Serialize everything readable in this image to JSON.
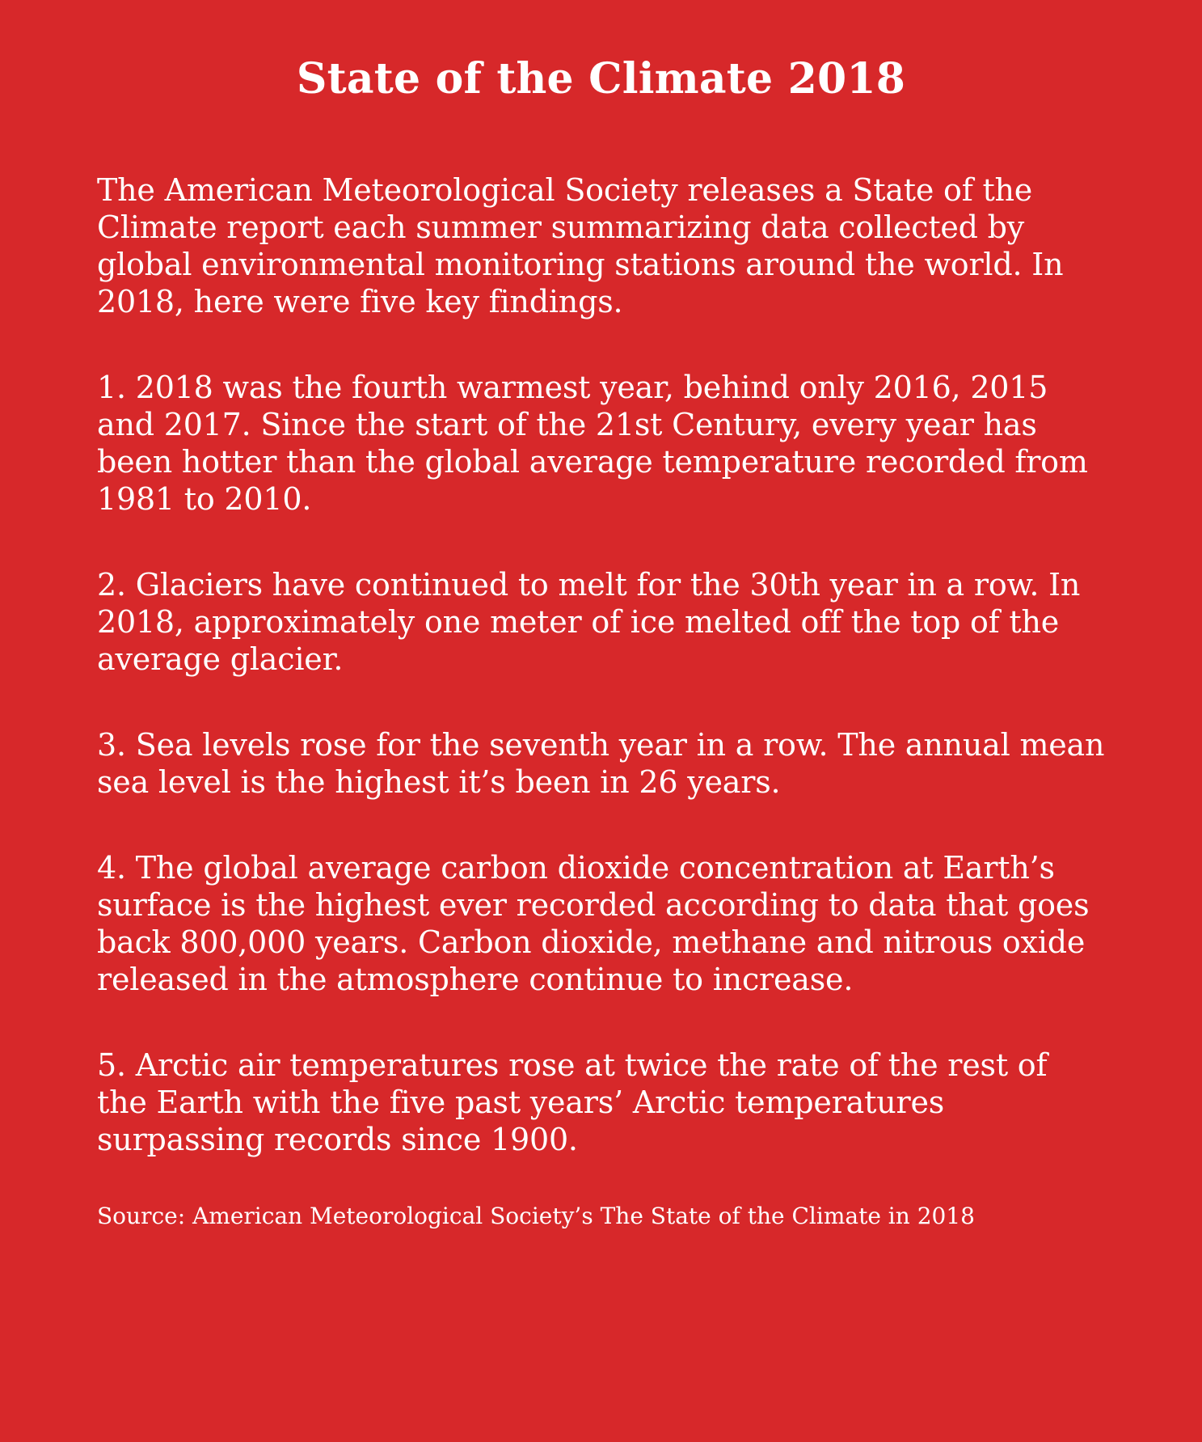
{
  "title": "State of the Climate 2018",
  "intro": "The American Meteorological Society releases a State of the Climate report each summer summarizing data collected by global environmental monitoring stations around the world. In 2018, here were five key findings.",
  "findings": [
    "1. 2018 was the fourth warmest year, behind only 2016, 2015 and 2017. Since the start of the 21st Century, every year has been hotter than the global average temperature recorded from 1981 to 2010.",
    "2. Glaciers have continued to melt for the 30th year in a row. In 2018, approximately one meter of ice melted off the top of the average glacier.",
    "3. Sea levels rose for the seventh year in a row. The annual mean sea level is the highest it’s been in 26 years.",
    "4. The global average carbon dioxide concentration at Earth’s surface is the highest ever recorded according to data that goes back 800,000 years. Carbon dioxide, methane and nitrous oxide released in the atmosphere continue to increase.",
    "5. Arctic air temperatures rose at twice the rate of the rest of the Earth with the five past years’ Arctic temperatures surpassing records since 1900."
  ],
  "source": "Source: American Meteorological Society’s The State of the Climate in 2018",
  "colors": {
    "background": "#d7282a",
    "text": "#ffffff"
  }
}
